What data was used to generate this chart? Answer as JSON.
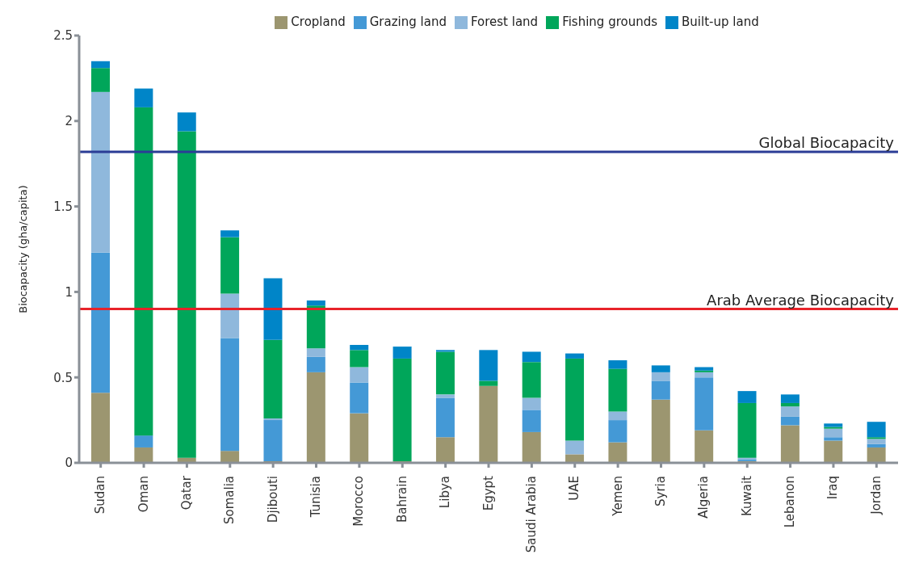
{
  "chart_data": {
    "type": "bar",
    "stacked": true,
    "ylabel": "Biocapacity (gha/capita)",
    "categories": [
      "Sudan",
      "Oman",
      "Qatar",
      "Somalia",
      "Djibouti",
      "Tunisia",
      "Morocco",
      "Bahrain",
      "Libya",
      "Egypt",
      "Saudi Arabia",
      "UAE",
      "Yemen",
      "Syria",
      "Algeria",
      "Kuwait",
      "Lebanon",
      "Iraq",
      "Jordan"
    ],
    "series": [
      {
        "name": "Cropland",
        "color": "#9c9670",
        "values": [
          0.41,
          0.09,
          0.03,
          0.07,
          0.01,
          0.53,
          0.29,
          0.01,
          0.15,
          0.45,
          0.18,
          0.05,
          0.12,
          0.37,
          0.19,
          0.01,
          0.22,
          0.13,
          0.09
        ]
      },
      {
        "name": "Grazing land",
        "color": "#4499d6",
        "values": [
          0.82,
          0.07,
          0,
          0.66,
          0.24,
          0.09,
          0.18,
          0,
          0.23,
          0,
          0.13,
          0,
          0.13,
          0.11,
          0.31,
          0.01,
          0.05,
          0.02,
          0.02
        ]
      },
      {
        "name": "Forest land",
        "color": "#8fb8dc",
        "values": [
          0.94,
          0,
          0,
          0.26,
          0.01,
          0.05,
          0.09,
          0,
          0.02,
          0,
          0.07,
          0.08,
          0.05,
          0.05,
          0.03,
          0.01,
          0.06,
          0.05,
          0.03
        ]
      },
      {
        "name": "Fishing grounds",
        "color": "#00a65a",
        "values": [
          0.14,
          1.92,
          1.91,
          0.33,
          0.46,
          0.25,
          0.1,
          0.6,
          0.25,
          0.03,
          0.21,
          0.48,
          0.25,
          0,
          0.01,
          0.32,
          0.02,
          0.01,
          0.01
        ]
      },
      {
        "name": "Built-up land",
        "color": "#0085c8",
        "values": [
          0.04,
          0.11,
          0.11,
          0.04,
          0.36,
          0.03,
          0.03,
          0.07,
          0.01,
          0.18,
          0.06,
          0.03,
          0.05,
          0.04,
          0.02,
          0.07,
          0.05,
          0.02,
          0.09
        ]
      }
    ],
    "ylim": [
      0,
      2.5
    ],
    "yticks": [
      0,
      0.5,
      1,
      1.5,
      2,
      2.5
    ],
    "grid": false,
    "legend": "top",
    "ref_lines": [
      {
        "axis": "y",
        "value": 1.82,
        "label": "Global Biocapacity",
        "color": "#2b3d96"
      },
      {
        "axis": "y",
        "value": 0.9,
        "label": "Arab Average Biocapacity",
        "color": "#e8232a"
      }
    ]
  }
}
